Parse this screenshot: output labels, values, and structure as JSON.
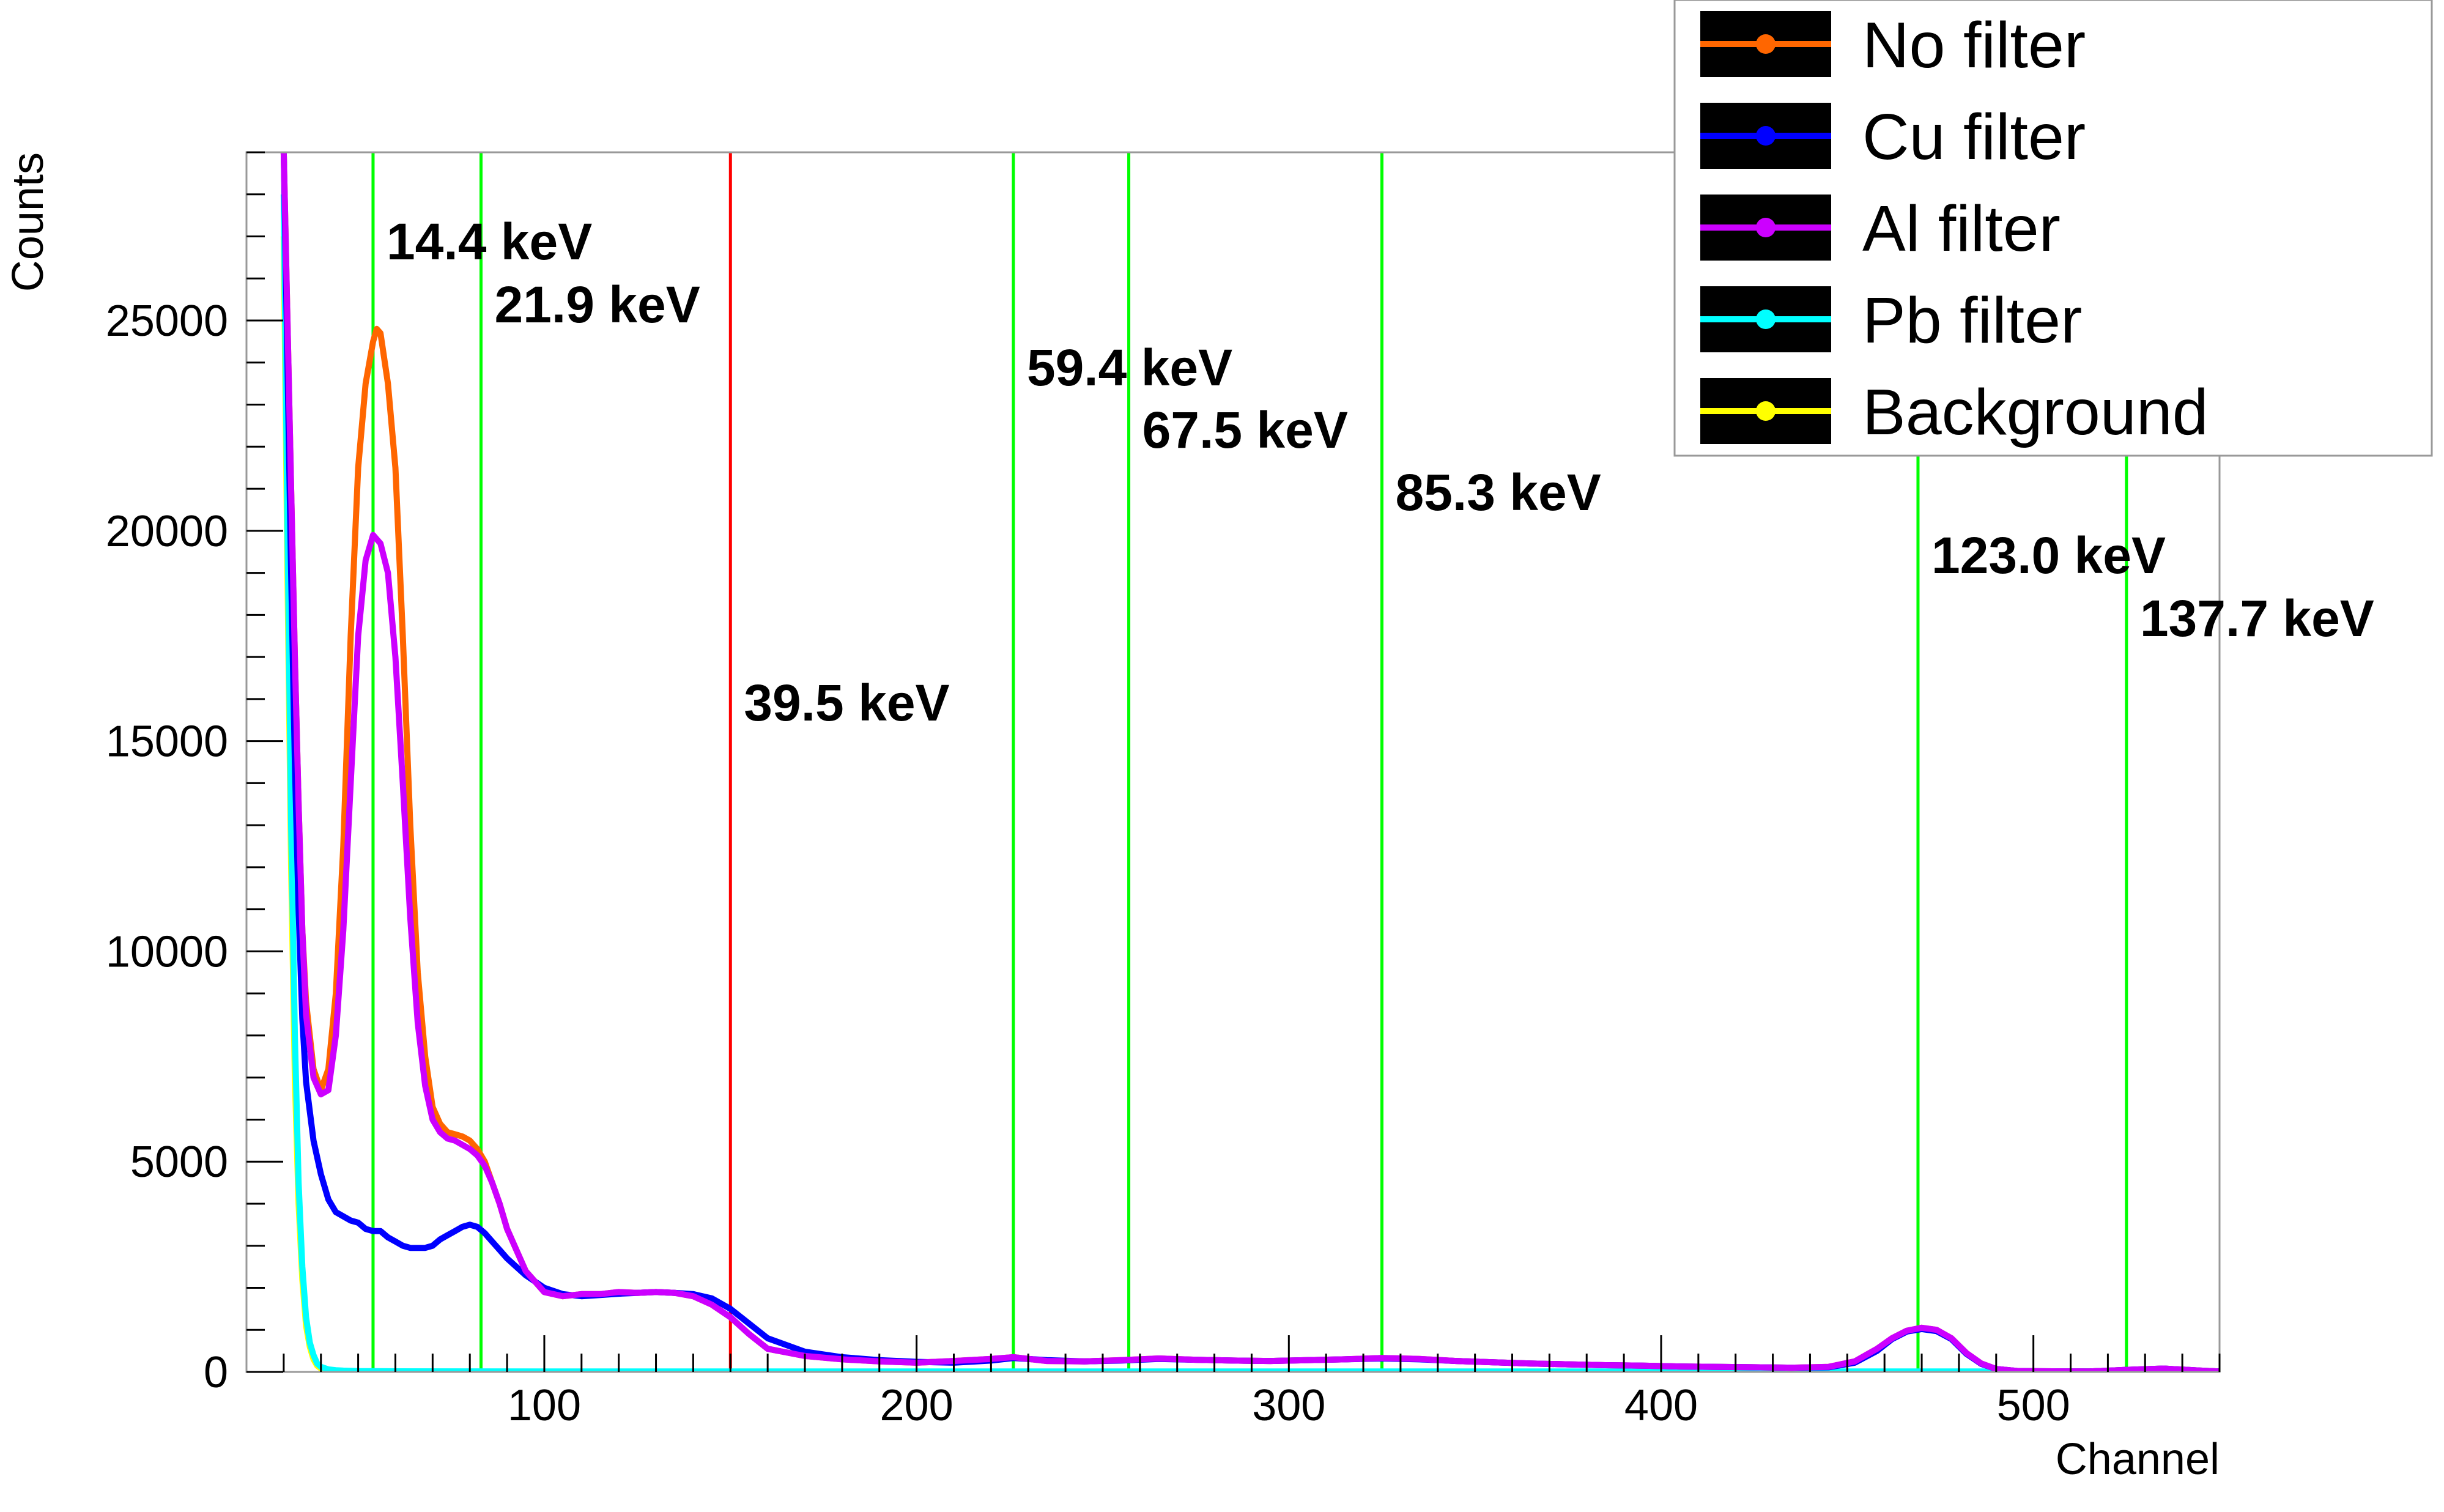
{
  "chart_data": {
    "type": "line",
    "xlabel": "Channel",
    "ylabel": "Counts",
    "xlim": [
      20,
      550
    ],
    "ylim": [
      0,
      29000
    ],
    "x_ticks": [
      100,
      200,
      300,
      400,
      500
    ],
    "y_ticks": [
      0,
      5000,
      10000,
      15000,
      20000,
      25000
    ],
    "legend_position": "top-right",
    "grid": false,
    "series": [
      {
        "name": "No filter",
        "color": "#ff6600",
        "x": [
          30,
          31,
          32,
          33,
          34,
          35,
          36,
          38,
          40,
          42,
          44,
          46,
          48,
          50,
          52,
          54,
          55,
          56,
          58,
          60,
          62,
          64,
          66,
          68,
          70,
          72,
          74,
          76,
          78,
          80,
          82,
          84,
          86,
          88,
          90,
          95,
          100,
          105,
          110,
          115,
          120,
          125,
          130,
          135,
          140,
          145,
          150,
          155,
          160,
          170,
          180,
          190,
          200,
          210,
          220,
          226,
          235,
          245,
          255,
          265,
          275,
          285,
          295,
          305,
          315,
          325,
          335,
          345,
          355,
          365,
          375,
          385,
          395,
          405,
          415,
          425,
          435,
          445,
          452,
          458,
          462,
          466,
          470,
          474,
          478,
          482,
          486,
          490,
          496,
          505,
          515,
          525,
          535,
          545,
          550
        ],
        "y": [
          29000,
          25000,
          21000,
          17000,
          13500,
          10500,
          8800,
          7200,
          6700,
          7200,
          9000,
          12500,
          17500,
          21500,
          23500,
          24500,
          24800,
          24700,
          23500,
          21500,
          17500,
          13000,
          9500,
          7500,
          6300,
          5900,
          5700,
          5650,
          5600,
          5500,
          5300,
          5000,
          4500,
          4000,
          3400,
          2400,
          1900,
          1800,
          1850,
          1850,
          1900,
          1880,
          1900,
          1880,
          1800,
          1600,
          1300,
          900,
          550,
          380,
          300,
          250,
          220,
          260,
          310,
          350,
          260,
          250,
          280,
          320,
          290,
          270,
          260,
          280,
          300,
          330,
          310,
          260,
          230,
          200,
          180,
          160,
          150,
          130,
          120,
          110,
          100,
          120,
          250,
          550,
          800,
          980,
          1050,
          1000,
          800,
          450,
          200,
          70,
          20,
          15,
          10,
          50,
          80,
          30,
          10
        ]
      },
      {
        "name": "Cu filter",
        "color": "#0000ff",
        "x": [
          30,
          31,
          32,
          33,
          34,
          35,
          36,
          38,
          40,
          42,
          44,
          46,
          48,
          50,
          52,
          54,
          56,
          58,
          60,
          62,
          64,
          66,
          68,
          70,
          72,
          74,
          76,
          78,
          80,
          82,
          84,
          86,
          88,
          90,
          95,
          100,
          105,
          110,
          115,
          120,
          125,
          130,
          135,
          140,
          145,
          150,
          155,
          160,
          170,
          180,
          190,
          200,
          210,
          220,
          226,
          235,
          245,
          255,
          265,
          275,
          285,
          295,
          305,
          315,
          325,
          335,
          345,
          355,
          365,
          375,
          385,
          395,
          405,
          415,
          425,
          435,
          445,
          452,
          458,
          462,
          466,
          470,
          474,
          478,
          482,
          486,
          490,
          496,
          505,
          515,
          525,
          535,
          545,
          550
        ],
        "y": [
          29000,
          24000,
          19000,
          14500,
          11000,
          8400,
          6900,
          5500,
          4700,
          4100,
          3800,
          3700,
          3600,
          3550,
          3400,
          3350,
          3350,
          3200,
          3100,
          3000,
          2950,
          2950,
          2950,
          3000,
          3150,
          3250,
          3350,
          3450,
          3500,
          3450,
          3300,
          3100,
          2900,
          2700,
          2300,
          2000,
          1850,
          1800,
          1830,
          1860,
          1880,
          1900,
          1880,
          1850,
          1750,
          1500,
          1150,
          800,
          480,
          350,
          280,
          240,
          220,
          270,
          330,
          280,
          250,
          270,
          310,
          290,
          270,
          260,
          280,
          300,
          320,
          300,
          260,
          230,
          200,
          180,
          160,
          150,
          130,
          120,
          110,
          100,
          110,
          220,
          500,
          780,
          960,
          1020,
          970,
          780,
          430,
          190,
          70,
          20,
          15,
          10,
          50,
          80,
          30,
          10
        ]
      },
      {
        "name": "Al filter",
        "color": "#cc00ff",
        "x": [
          30,
          31,
          32,
          33,
          34,
          35,
          36,
          38,
          40,
          42,
          44,
          46,
          48,
          50,
          52,
          54,
          55,
          56,
          58,
          60,
          62,
          64,
          66,
          68,
          70,
          72,
          74,
          76,
          78,
          80,
          82,
          84,
          86,
          88,
          90,
          95,
          100,
          105,
          110,
          115,
          120,
          125,
          130,
          135,
          140,
          145,
          150,
          155,
          160,
          170,
          180,
          190,
          200,
          210,
          220,
          226,
          235,
          245,
          255,
          265,
          275,
          285,
          295,
          305,
          315,
          325,
          335,
          345,
          355,
          365,
          375,
          385,
          395,
          405,
          415,
          425,
          435,
          445,
          452,
          458,
          462,
          466,
          470,
          474,
          478,
          482,
          486,
          490,
          496,
          505,
          515,
          525,
          535,
          545,
          550
        ],
        "y": [
          29000,
          25000,
          21000,
          17000,
          13500,
          10500,
          8500,
          7000,
          6600,
          6700,
          8000,
          10500,
          14000,
          17500,
          19300,
          19900,
          19800,
          19700,
          19000,
          17000,
          14000,
          10800,
          8300,
          6800,
          6000,
          5700,
          5550,
          5500,
          5400,
          5300,
          5150,
          4900,
          4500,
          4000,
          3400,
          2400,
          1900,
          1800,
          1850,
          1850,
          1900,
          1880,
          1900,
          1880,
          1800,
          1600,
          1300,
          900,
          550,
          380,
          300,
          250,
          220,
          260,
          310,
          350,
          260,
          250,
          280,
          320,
          290,
          270,
          260,
          280,
          300,
          330,
          310,
          260,
          230,
          200,
          180,
          160,
          150,
          130,
          120,
          110,
          100,
          120,
          250,
          550,
          800,
          980,
          1050,
          1000,
          800,
          450,
          200,
          70,
          20,
          15,
          10,
          50,
          80,
          30,
          10
        ]
      },
      {
        "name": "Pb filter",
        "color": "#00ffff",
        "x": [
          30,
          31,
          32,
          33,
          34,
          35,
          36,
          37,
          38,
          39,
          40,
          42,
          44,
          46,
          50,
          60,
          100,
          200,
          300,
          400,
          500,
          550
        ],
        "y": [
          28000,
          20000,
          13000,
          8000,
          4500,
          2500,
          1300,
          700,
          400,
          200,
          120,
          60,
          40,
          30,
          20,
          15,
          10,
          10,
          10,
          10,
          10,
          10
        ]
      },
      {
        "name": "Background",
        "color": "#ffff00",
        "x": [
          30,
          31,
          32,
          33,
          34,
          35,
          36,
          37,
          38,
          39,
          40,
          42,
          44,
          46,
          50,
          60,
          100,
          200,
          300,
          400,
          500,
          550
        ],
        "y": [
          27000,
          19000,
          12000,
          7000,
          4000,
          2200,
          1100,
          600,
          300,
          150,
          80,
          40,
          25,
          15,
          10,
          8,
          5,
          5,
          5,
          5,
          5,
          5
        ]
      }
    ],
    "lines": [
      {
        "x": 54,
        "color": "#00ff00",
        "label": "14.4 keV"
      },
      {
        "x": 83,
        "color": "#00ff00",
        "label": "21.9 keV"
      },
      {
        "x": 150,
        "color": "#ff0000",
        "label": "39.5 keV"
      },
      {
        "x": 226,
        "color": "#00ff00",
        "label": "59.4 keV"
      },
      {
        "x": 257,
        "color": "#00ff00",
        "label": "67.5 keV"
      },
      {
        "x": 325,
        "color": "#00ff00",
        "label": "85.3 keV"
      },
      {
        "x": 469,
        "color": "#00ff00",
        "label": "123.0 keV"
      },
      {
        "x": 525,
        "color": "#00ff00",
        "label": "137.7 keV"
      }
    ]
  }
}
